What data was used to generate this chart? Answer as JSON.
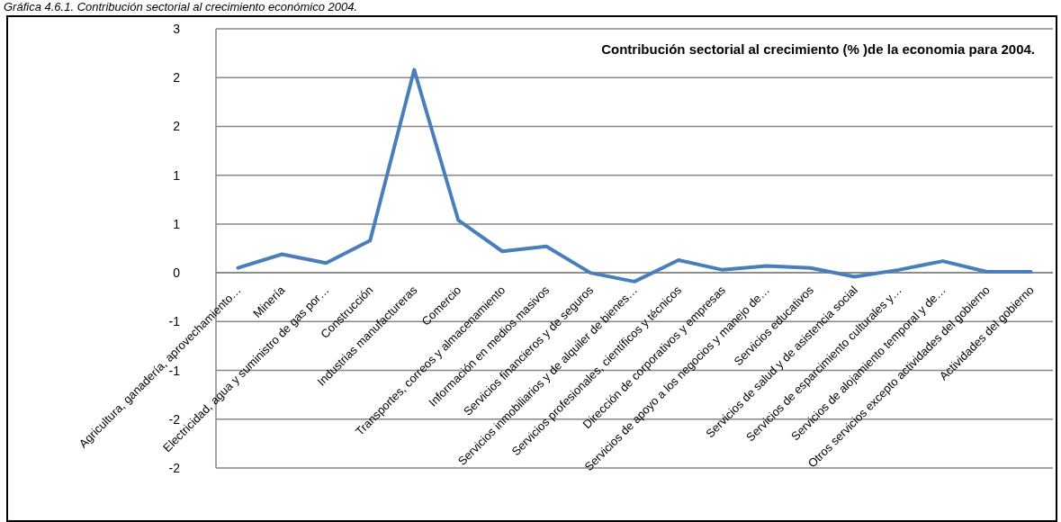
{
  "chart_data": {
    "type": "line",
    "title": "Contribución sectorial al crecimiento  (% )de la economia  para 2004.",
    "annotations": [
      "Gráfica 4.6.1. Contribución sectorial al crecimiento económico 2004."
    ],
    "categories": [
      "Agricultura, ganadería, aprovechamiento…",
      "Minería",
      "Electricidad, agua y suministro de gas por…",
      "Construcción",
      "Industrias manufactureras",
      "Comercio",
      "Transportes, correos y almacenamiento",
      "Información en medios masivos",
      "Servicios financieros y de seguros",
      "Servicios inmobiliarios y de alquiler de bienes…",
      "Servicios profesionales, científicos y técnicos",
      "Dirección de corporativos y empresas",
      "Servicios de apoyo a los negocios y manejo de…",
      "Servicios educativos",
      "Servicios de salud y de asistencia social",
      "Servicios de esparcimiento culturales y…",
      "Servicios de alojamiento temporal y de…",
      "Otros servicios excepto actividades del gobierno",
      "Actividades del gobierno"
    ],
    "series": [
      {
        "color": "#4a7ebb",
        "values": [
          0.05,
          0.19,
          0.1,
          0.33,
          2.08,
          0.54,
          0.22,
          0.27,
          0.0,
          -0.09,
          0.13,
          0.03,
          0.07,
          0.05,
          -0.04,
          0.03,
          0.12,
          0.01,
          0.01
        ]
      }
    ],
    "ylim": [
      -2,
      2.5
    ],
    "yticks": [
      {
        "value": -2,
        "label": "-2"
      },
      {
        "value": -1.5,
        "label": "-2"
      },
      {
        "value": -1,
        "label": "-1"
      },
      {
        "value": -0.5,
        "label": "-1"
      },
      {
        "value": 0,
        "label": "0"
      },
      {
        "value": 0.5,
        "label": "1"
      },
      {
        "value": 1,
        "label": "1"
      },
      {
        "value": 1.5,
        "label": "2"
      },
      {
        "value": 2,
        "label": "2"
      },
      {
        "value": 2.5,
        "label": "3"
      }
    ],
    "grid": "y",
    "marker": "none",
    "line_style": "solid"
  }
}
